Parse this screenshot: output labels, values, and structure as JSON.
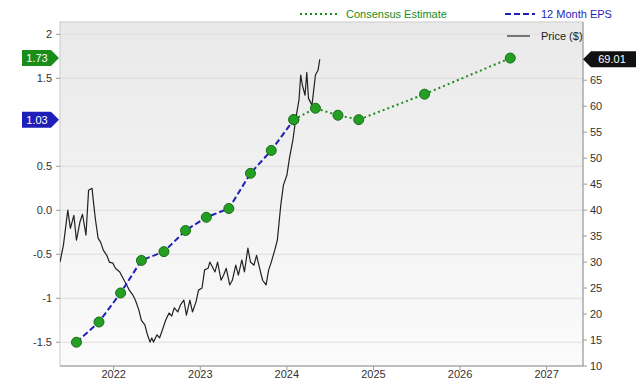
{
  "chart_data": {
    "type": "line",
    "xlim": [
      2021.38,
      2027.42
    ],
    "xticks": [
      2022,
      2023,
      2024,
      2025,
      2026,
      2027
    ],
    "ylim": [
      -1.77,
      2.14
    ],
    "yticks": [
      -1.5,
      -1,
      -0.5,
      {
        "value": 0,
        "label": "0.0"
      },
      0.5,
      1.5,
      2
    ],
    "y2lim": [
      10,
      76.2
    ],
    "y2ticks": [
      10,
      15,
      20,
      25,
      30,
      35,
      40,
      45,
      50,
      55,
      60,
      65
    ],
    "grid": true,
    "legend": "top-right",
    "series": [
      {
        "name": "Consensus Estimate",
        "color": "#1a8c1a",
        "line_style": "dotted",
        "marker": "circle",
        "x": [
          2024.08,
          2024.33,
          2024.59,
          2024.83,
          2025.59,
          2026.58
        ],
        "values": [
          1.03,
          1.16,
          1.08,
          1.03,
          1.32,
          1.73
        ]
      },
      {
        "name": "12 Month EPS",
        "color": "#1f1fb8",
        "line_style": "dashed",
        "marker": "circle",
        "x": [
          2021.57,
          2021.83,
          2022.08,
          2022.32,
          2022.58,
          2022.83,
          2023.07,
          2023.33,
          2023.58,
          2023.82,
          2024.08
        ],
        "values": [
          -1.5,
          -1.27,
          -0.94,
          -0.57,
          -0.47,
          -0.23,
          -0.08,
          0.02,
          0.42,
          0.68,
          1.03
        ]
      },
      {
        "name": "Price ($)",
        "color": "#222222",
        "line_style": "solid",
        "axis": "y2",
        "x": [
          2021.38,
          2021.42,
          2021.47,
          2021.5,
          2021.54,
          2021.57,
          2021.61,
          2021.64,
          2021.68,
          2021.71,
          2021.75,
          2021.77,
          2021.79,
          2021.82,
          2021.85,
          2021.88,
          2021.92,
          2021.95,
          2021.99,
          2022.02,
          2022.07,
          2022.12,
          2022.15,
          2022.18,
          2022.22,
          2022.25,
          2022.29,
          2022.32,
          2022.36,
          2022.39,
          2022.42,
          2022.44,
          2022.46,
          2022.5,
          2022.53,
          2022.57,
          2022.6,
          2022.64,
          2022.67,
          2022.7,
          2022.74,
          2022.77,
          2022.81,
          2022.84,
          2022.88,
          2022.91,
          2022.95,
          2022.98,
          2023.02,
          2023.05,
          2023.09,
          2023.11,
          2023.13,
          2023.17,
          2023.2,
          2023.24,
          2023.27,
          2023.3,
          2023.34,
          2023.37,
          2023.41,
          2023.44,
          2023.48,
          2023.51,
          2023.55,
          2023.58,
          2023.62,
          2023.65,
          2023.69,
          2023.72,
          2023.76,
          2023.79,
          2023.82,
          2023.86,
          2023.89,
          2023.93,
          2023.96,
          2024.0,
          2024.03,
          2024.07,
          2024.1,
          2024.14,
          2024.16,
          2024.18,
          2024.21,
          2024.23,
          2024.25,
          2024.29,
          2024.31,
          2024.33,
          2024.36,
          2024.38
        ],
        "values": [
          30.0,
          33.3,
          40.0,
          36.5,
          39.0,
          34.2,
          37.7,
          39.2,
          35.2,
          43.8,
          44.2,
          41.0,
          38.1,
          34.6,
          33.8,
          32.3,
          31.3,
          30.0,
          29.8,
          28.8,
          28.1,
          26.5,
          25.6,
          24.6,
          23.7,
          22.7,
          20.8,
          18.8,
          17.9,
          16.0,
          14.6,
          15.4,
          14.6,
          16.0,
          15.4,
          17.3,
          18.8,
          20.2,
          19.6,
          21.2,
          20.4,
          21.7,
          22.7,
          19.8,
          22.7,
          20.4,
          22.3,
          24.6,
          25.0,
          28.5,
          28.8,
          30.0,
          29.4,
          28.1,
          30.0,
          26.5,
          27.5,
          28.8,
          25.6,
          26.5,
          29.4,
          27.5,
          30.4,
          28.1,
          32.7,
          30.0,
          29.4,
          31.3,
          28.5,
          26.5,
          25.6,
          28.5,
          30.0,
          32.3,
          34.2,
          41.0,
          44.8,
          46.7,
          50.0,
          53.5,
          57.3,
          61.2,
          66.0,
          64.0,
          62.1,
          66.5,
          61.5,
          60.2,
          63.1,
          66.0,
          66.9,
          69.01
        ]
      }
    ]
  }
}
